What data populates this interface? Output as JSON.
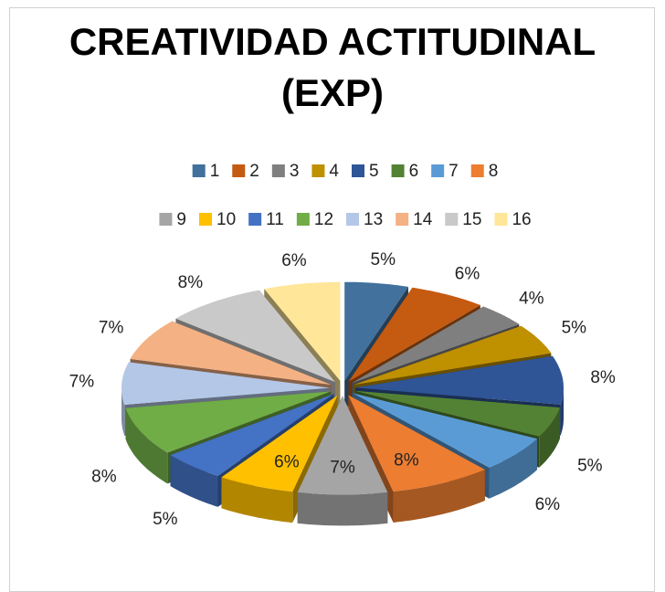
{
  "chart_data": {
    "type": "pie",
    "title": "CREATIVIDAD ACTITUDINAL (EXP)",
    "categories": [
      "1",
      "2",
      "3",
      "4",
      "5",
      "6",
      "7",
      "8",
      "9",
      "10",
      "11",
      "12",
      "13",
      "14",
      "15",
      "16"
    ],
    "series": [
      {
        "name": "CREATIVIDAD ACTITUDINAL (EXP)",
        "values": [
          5,
          6,
          4,
          5,
          8,
          5,
          6,
          8,
          7,
          6,
          5,
          8,
          7,
          7,
          8,
          6
        ],
        "value_labels": [
          "5%",
          "6%",
          "4%",
          "5%",
          "8%",
          "5%",
          "6%",
          "8%",
          "7%",
          "6%",
          "5%",
          "8%",
          "7%",
          "7%",
          "8%",
          "6%"
        ],
        "colors": [
          "#41719c",
          "#c55a11",
          "#7f7f7f",
          "#bf9000",
          "#2f5597",
          "#548235",
          "#5b9bd5",
          "#ed7d31",
          "#a5a5a5",
          "#ffc000",
          "#4472c4",
          "#70ad47",
          "#b4c7e7",
          "#f4b183",
          "#c9c9c9",
          "#ffe699"
        ]
      }
    ],
    "legend": "top"
  }
}
